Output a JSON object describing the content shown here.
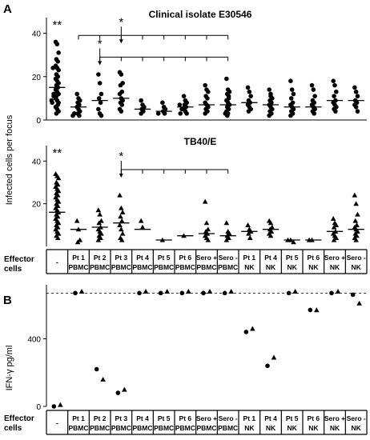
{
  "panels": {
    "A": "A",
    "B": "B"
  },
  "shared": {
    "ylabel_top": "Infected cells per focus",
    "effector_label": [
      "Effector",
      "cells"
    ],
    "groups": [
      [
        "-"
      ],
      [
        "Pt 1",
        "PBMC"
      ],
      [
        "Pt 2",
        "PBMC"
      ],
      [
        "Pt 3",
        "PBMC"
      ],
      [
        "Pt 4",
        "PBMC"
      ],
      [
        "Pt 5",
        "PBMC"
      ],
      [
        "Pt 6",
        "PBMC"
      ],
      [
        "Sero +",
        "PBMC"
      ],
      [
        "Sero -",
        "PBMC"
      ],
      [
        "Pt 1",
        "NK"
      ],
      [
        "Pt 4",
        "NK"
      ],
      [
        "Pt 5",
        "NK"
      ],
      [
        "Pt 6",
        "NK"
      ],
      [
        "Sero +",
        "NK"
      ],
      [
        "Sero -",
        "NK"
      ]
    ],
    "sig_single": "*",
    "sig_double": "**"
  },
  "chart_data": [
    {
      "type": "scatter",
      "title": "Clinical isolate E30546",
      "ylim": [
        0,
        45
      ],
      "yticks": [
        0,
        20,
        40
      ],
      "marker": "circle",
      "series": [
        {
          "group": 0,
          "values": [
            36,
            35,
            31,
            28,
            27,
            25,
            24,
            23,
            21,
            20,
            19,
            18,
            17,
            16,
            15,
            14,
            13,
            12,
            11,
            11,
            10,
            9,
            8,
            8,
            7,
            6,
            5,
            4,
            3,
            12,
            9,
            24
          ],
          "median": 15
        },
        {
          "group": 1,
          "values": [
            12,
            10,
            9,
            8,
            7,
            6,
            5,
            4,
            3,
            2,
            2,
            3
          ],
          "median": 6
        },
        {
          "group": 2,
          "values": [
            21,
            17,
            12,
            10,
            8,
            5,
            3,
            2
          ],
          "median": 9
        },
        {
          "group": 3,
          "values": [
            22,
            21,
            17,
            16,
            13,
            12,
            10,
            9,
            8,
            7,
            5,
            4
          ],
          "median": 10
        },
        {
          "group": 4,
          "values": [
            9,
            7,
            6,
            5,
            4,
            3
          ],
          "median": 5
        },
        {
          "group": 5,
          "values": [
            8,
            6,
            5,
            4,
            3,
            3
          ],
          "median": 4
        },
        {
          "group": 6,
          "values": [
            11,
            9,
            8,
            7,
            6,
            5,
            4,
            3,
            3,
            5,
            7
          ],
          "median": 6
        },
        {
          "group": 7,
          "values": [
            16,
            14,
            13,
            11,
            10,
            8,
            7,
            6,
            5,
            4,
            3
          ],
          "median": 7
        },
        {
          "group": 8,
          "values": [
            19,
            14,
            13,
            12,
            10,
            9,
            8,
            7,
            6,
            5,
            4,
            3,
            3,
            2,
            11
          ],
          "median": 7
        },
        {
          "group": 9,
          "values": [
            15,
            13,
            11,
            9,
            8,
            7,
            6,
            5,
            4
          ],
          "median": 8
        },
        {
          "group": 10,
          "values": [
            14,
            12,
            10,
            9,
            8,
            7,
            6,
            5,
            4,
            3,
            2,
            11
          ],
          "median": 7
        },
        {
          "group": 11,
          "values": [
            18,
            14,
            12,
            10,
            8,
            7,
            6,
            5,
            4,
            3,
            2
          ],
          "median": 6
        },
        {
          "group": 12,
          "values": [
            16,
            14,
            11,
            9,
            8,
            7,
            6,
            5,
            4,
            3
          ],
          "median": 6
        },
        {
          "group": 13,
          "values": [
            18,
            16,
            13,
            11,
            9,
            8,
            7,
            6,
            5,
            4
          ],
          "median": 9
        },
        {
          "group": 14,
          "values": [
            15,
            13,
            11,
            9,
            8,
            7,
            6,
            4
          ],
          "median": 9
        }
      ],
      "double_star_group": 0,
      "brackets": [
        {
          "from": 1,
          "to": 8,
          "y": 39,
          "star_group": 3
        },
        {
          "from": 2,
          "to": 8,
          "y": 29,
          "star_group": 2
        }
      ]
    },
    {
      "type": "scatter",
      "title": "TB40/E",
      "ylim": [
        0,
        45
      ],
      "yticks": [
        20,
        40
      ],
      "marker": "triangle",
      "series": [
        {
          "group": 0,
          "values": [
            34,
            33,
            32,
            30,
            29,
            28,
            27,
            26,
            25,
            24,
            23,
            22,
            21,
            20,
            19,
            18,
            17,
            16,
            15,
            14,
            13,
            12,
            11,
            10,
            9,
            8,
            7,
            6,
            5,
            4
          ],
          "median": 16
        },
        {
          "group": 1,
          "values": [
            12,
            8,
            3,
            2
          ],
          "median": 8
        },
        {
          "group": 2,
          "values": [
            17,
            15,
            12,
            11,
            9,
            8,
            7,
            6,
            5,
            4,
            3
          ],
          "median": 9
        },
        {
          "group": 3,
          "values": [
            24,
            18,
            16,
            14,
            12,
            10,
            8,
            6,
            4,
            3
          ],
          "median": 11
        },
        {
          "group": 4,
          "values": [
            12,
            9
          ],
          "median": 8
        },
        {
          "group": 5,
          "values": [
            3
          ],
          "median": 3
        },
        {
          "group": 6,
          "values": [
            5
          ],
          "median": 5
        },
        {
          "group": 7,
          "values": [
            21,
            11,
            8,
            7,
            6,
            5,
            4,
            3
          ],
          "median": 6
        },
        {
          "group": 8,
          "values": [
            11,
            7,
            6,
            5,
            4,
            3
          ],
          "median": 5
        },
        {
          "group": 9,
          "values": [
            10,
            8,
            7,
            6,
            4
          ],
          "median": 7
        },
        {
          "group": 10,
          "values": [
            12,
            11,
            9,
            8,
            7,
            6,
            5
          ],
          "median": 8
        },
        {
          "group": 11,
          "values": [
            3,
            3,
            2
          ],
          "median": 3
        },
        {
          "group": 12,
          "values": [
            3,
            3
          ],
          "median": 3
        },
        {
          "group": 13,
          "values": [
            13,
            11,
            10,
            9,
            7,
            6,
            5,
            4,
            3
          ],
          "median": 7
        },
        {
          "group": 14,
          "values": [
            24,
            20,
            15,
            12,
            10,
            9,
            8,
            7,
            6,
            5,
            4,
            3
          ],
          "median": 8
        }
      ],
      "double_star_group": 0,
      "brackets": [
        {
          "from": 3,
          "to": 8,
          "y": 36,
          "star_group": 3
        }
      ]
    },
    {
      "type": "scatter",
      "ylabel": "IFN-γ pg/ml",
      "ylim": [
        0,
        700
      ],
      "yticks": [
        0,
        400
      ],
      "reference_line": 670,
      "series": [
        {
          "name": "circle",
          "group_values": [
            0,
            670,
            220,
            80,
            670,
            670,
            670,
            670,
            670,
            440,
            240,
            670,
            570,
            670,
            660
          ]
        },
        {
          "name": "triangle",
          "group_values": [
            0,
            670,
            150,
            90,
            670,
            670,
            670,
            670,
            670,
            450,
            280,
            670,
            560,
            670,
            600
          ]
        }
      ]
    }
  ]
}
